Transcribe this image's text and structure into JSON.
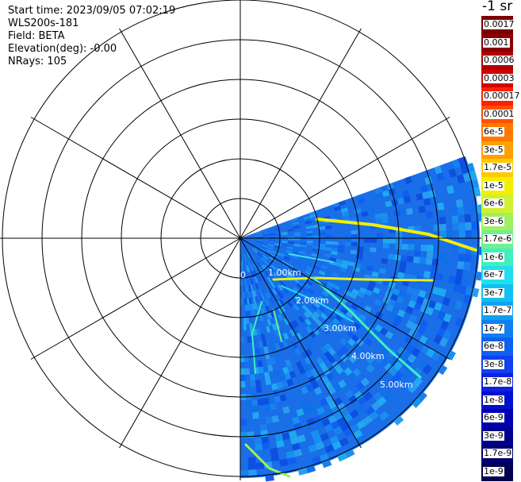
{
  "header": {
    "start_time": "Start time: 2023/09/05 07:02:19",
    "instrument": "WLS200s-181",
    "field": "Field: BETA",
    "elevation": "Elevation(deg): -0.00",
    "nrays": "NRays: 105"
  },
  "plot": {
    "range_labels": [
      "0",
      "1.00km",
      "2.00km",
      "3.00km",
      "4.00km",
      "5.00km"
    ]
  },
  "colorbar": {
    "title": "-1 sr",
    "labels": [
      "0.0017",
      "0.001",
      "0.0006",
      "0.0003",
      "0.00017",
      "0.0001",
      "6e-5",
      "3e-5",
      "1.7e-5",
      "1e-5",
      "6e-6",
      "3e-6",
      "1.7e-6",
      "1e-6",
      "6e-7",
      "3e-7",
      "1.7e-7",
      "1e-7",
      "6e-8",
      "3e-8",
      "1.7e-8",
      "1e-8",
      "6e-9",
      "3e-9",
      "1.7e-9",
      "1e-9"
    ],
    "colors": [
      "#7a0000",
      "#8b0000",
      "#b00000",
      "#d40000",
      "#ff2000",
      "#ff5000",
      "#ff7800",
      "#ffa000",
      "#ffc800",
      "#f0f000",
      "#d0f030",
      "#a0f060",
      "#70f090",
      "#40f0c0",
      "#20e0f0",
      "#10c0f0",
      "#10a0f0",
      "#1080f0",
      "#1060f0",
      "#1040f0",
      "#1020e0",
      "#0010d0",
      "#0000b0",
      "#000090",
      "#000070",
      "#000050"
    ]
  }
}
